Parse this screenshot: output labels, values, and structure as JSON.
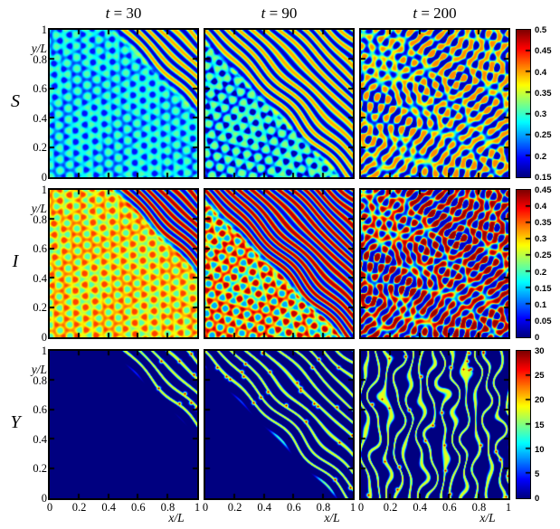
{
  "figure_type": "simulation snapshot grid",
  "chart_data": {
    "type": "heatmap",
    "colormap": "jet",
    "grid": [
      3,
      3
    ],
    "column_titles": [
      "t = 30",
      "t = 90",
      "t = 200"
    ],
    "times": [
      30,
      90,
      200
    ],
    "row_labels": [
      "S",
      "I",
      "Y"
    ],
    "x_axis": {
      "label": "x/L",
      "range": [
        0,
        1
      ],
      "ticks": [
        "0",
        "0.2",
        "0.4",
        "0.6",
        "0.8",
        "1"
      ]
    },
    "y_axis": {
      "label": "y/L",
      "range": [
        0,
        1
      ],
      "ticks": [
        "1",
        "0.8",
        "0.6",
        "0.4",
        "0.2",
        "0"
      ]
    },
    "colorbars": [
      {
        "row": "S",
        "min": 0.15,
        "max": 0.5,
        "ticks": [
          "0.5",
          "0.45",
          "0.4",
          "0.35",
          "0.3",
          "0.25",
          "0.2",
          "0.15"
        ]
      },
      {
        "row": "I",
        "min": 0,
        "max": 0.45,
        "ticks": [
          "0.45",
          "0.4",
          "0.35",
          "0.3",
          "0.25",
          "0.2",
          "0.15",
          "0.1",
          "0.05",
          "0"
        ]
      },
      {
        "row": "Y",
        "min": 0,
        "max": 30,
        "ticks": [
          "30",
          "25",
          "20",
          "15",
          "10",
          "5",
          "0"
        ]
      }
    ],
    "render": {
      "wave_cycles": 15,
      "stripe_cycles": 11.5,
      "line_cycles": 9.5,
      "vert_cycles": 13
    },
    "panels": [
      {
        "row": "S",
        "t": 30,
        "pattern": "faint dark-blue spots on cyan; diagonal yellow/blue stripe front invading from upper-right (x+y>1.44)",
        "render": {
          "seed": 11,
          "front": 1.44,
          "kind": "conc",
          "base": 0.275,
          "aPos": -0.075,
          "aNeg": 0.035,
          "sh": 1.8,
          "sMid": 0.285,
          "sAmp": 0.12
        }
      },
      {
        "row": "S",
        "t": 90,
        "pattern": "stronger blue spot lattice on cyan-green; diagonal yellow/blue stripes cover upper-right half (x+y>0.92)",
        "render": {
          "seed": 22,
          "front": 0.92,
          "kind": "conc",
          "base": 0.28,
          "aPos": -0.115,
          "aNeg": 0.045,
          "sh": 2.0,
          "sMid": 0.285,
          "sAmp": 0.12
        }
      },
      {
        "row": "S",
        "t": 200,
        "pattern": "fully developed labyrinthine yellow/blue stripes over whole domain",
        "render": {
          "seed": 33,
          "front": null,
          "kind": "conc",
          "base": 0.28,
          "aPos": 0,
          "aNeg": 0,
          "sh": 1,
          "sMid": 0.29,
          "sAmp": 0.12
        }
      },
      {
        "row": "I",
        "t": 30,
        "pattern": "orange spots on yellow background; red/blue diagonal stripes in upper-right corner (x+y>1.44)",
        "render": {
          "seed": 11,
          "front": 1.44,
          "kind": "conc",
          "base": 0.285,
          "aPos": 0.08,
          "aNeg": -0.08,
          "sh": 1.8,
          "sMid": 0.235,
          "sAmp": 0.205
        }
      },
      {
        "row": "I",
        "t": 90,
        "pattern": "strong hexagonal red spots with cyan-blue rings on yellow; red/blue stripes cover upper-right half (x+y>0.92)",
        "render": {
          "seed": 22,
          "front": 0.92,
          "kind": "conc",
          "base": 0.28,
          "aPos": 0.14,
          "aNeg": -0.15,
          "sh": 2.0,
          "sMid": 0.235,
          "sAmp": 0.205
        }
      },
      {
        "row": "I",
        "t": 200,
        "pattern": "fully developed red/blue labyrinthine stripes over whole domain",
        "render": {
          "seed": 33,
          "front": null,
          "kind": "conc",
          "base": 0.28,
          "aPos": 0,
          "aNeg": 0,
          "sh": 1,
          "sMid": 0.235,
          "sAmp": 0.205
        }
      },
      {
        "row": "Y",
        "t": 30,
        "pattern": "uniform dark navy (Y=0) except thin cyan-yellow diagonal filaments with red tips in upper-right corner (x+y>1.44)",
        "render": {
          "seed": 11,
          "front": 1.44,
          "kind": "lines",
          "amp": 18,
          "dots": 12,
          "orient": "diag"
        }
      },
      {
        "row": "Y",
        "t": 90,
        "pattern": "dark navy lower-left; thin wavy filaments with red spots fill upper-right half (x+y>0.9)",
        "render": {
          "seed": 22,
          "front": 0.9,
          "kind": "lines",
          "amp": 18,
          "dots": 26,
          "orient": "diag"
        }
      },
      {
        "row": "Y",
        "t": 200,
        "pattern": "thin wavy near-vertical filaments with scattered red spots over whole navy domain",
        "render": {
          "seed": 33,
          "front": null,
          "kind": "lines",
          "amp": 18,
          "dots": 30,
          "orient": "vert"
        }
      }
    ]
  }
}
